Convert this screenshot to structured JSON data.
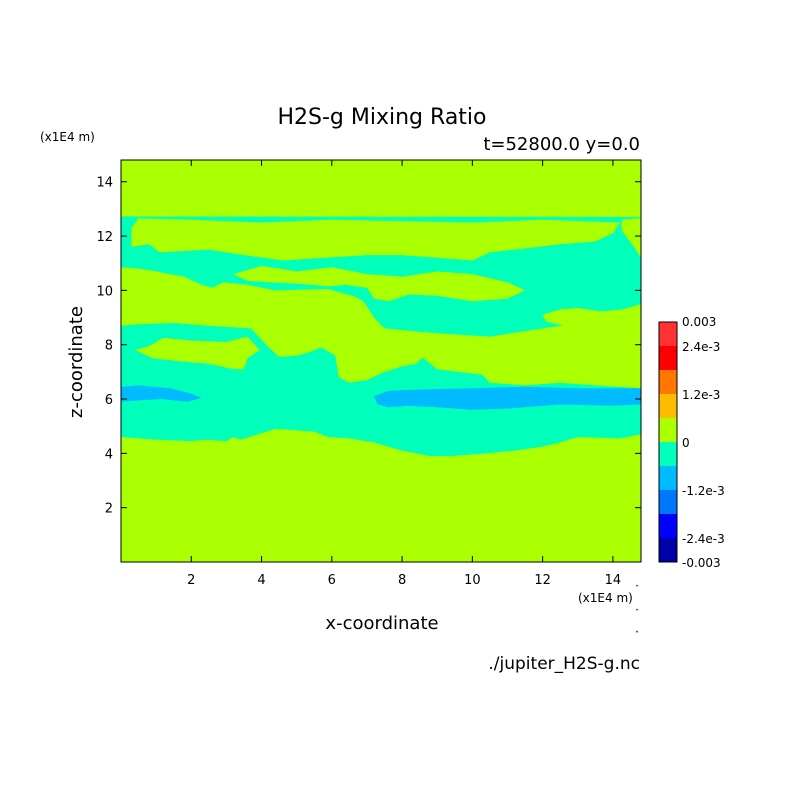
{
  "chart_data": {
    "type": "heatmap",
    "title": "H2S-g Mixing Ratio",
    "subtitle": "t=52800.0 y=0.0",
    "xlabel": "x-coordinate",
    "ylabel": "z-coordinate",
    "x_unit": "(x1E4 m)",
    "y_unit": "(x1E4 m)",
    "source_file": "./jupiter_H2S-g.nc",
    "xlim": [
      0,
      14.8
    ],
    "ylim": [
      0,
      14.8
    ],
    "x_ticks": [
      2,
      4,
      6,
      8,
      10,
      12,
      14
    ],
    "y_ticks": [
      2,
      4,
      6,
      8,
      10,
      12,
      14
    ],
    "colorbar": {
      "range": [
        -0.003,
        0.003
      ],
      "tick_labels": [
        {
          "value": 0.003,
          "label": "0.003"
        },
        {
          "value": 0.0024,
          "label": "2.4e-3"
        },
        {
          "value": 0.0012,
          "label": "1.2e-3"
        },
        {
          "value": 0,
          "label": "0"
        },
        {
          "value": -0.0012,
          "label": "-1.2e-3"
        },
        {
          "value": -0.0024,
          "label": "-2.4e-3"
        },
        {
          "value": -0.003,
          "label": "-0.003"
        }
      ],
      "levels": [
        {
          "min": 0.0024,
          "max": 0.003,
          "color": "#ff3333"
        },
        {
          "min": 0.0018,
          "max": 0.0024,
          "color": "#ff0000"
        },
        {
          "min": 0.0012,
          "max": 0.0018,
          "color": "#ff7700"
        },
        {
          "min": 0.0006,
          "max": 0.0012,
          "color": "#ffbb00"
        },
        {
          "min": 0,
          "max": 0.0006,
          "color": "#aaff00"
        },
        {
          "min": -0.0006,
          "max": 0,
          "color": "#00ffbb"
        },
        {
          "min": -0.0012,
          "max": -0.0006,
          "color": "#00bbff"
        },
        {
          "min": -0.0018,
          "max": -0.0012,
          "color": "#0077ff"
        },
        {
          "min": -0.0024,
          "max": -0.0018,
          "color": "#0000ff"
        },
        {
          "min": -0.003,
          "max": -0.0024,
          "color": "#0000aa"
        }
      ]
    },
    "regions": [
      {
        "name": "background",
        "color": "#aaff00",
        "points": [
          [
            0,
            0
          ],
          [
            14.8,
            0
          ],
          [
            14.8,
            14.8
          ],
          [
            0,
            14.8
          ]
        ]
      },
      {
        "name": "negative-band",
        "color": "#00ffbb",
        "points": [
          [
            0,
            12.78
          ],
          [
            14.8,
            12.78
          ],
          [
            14.8,
            12.66
          ],
          [
            14.25,
            12.6
          ],
          [
            14.25,
            12.2
          ],
          [
            14.6,
            11.6
          ],
          [
            14.8,
            11.2
          ],
          [
            14.8,
            9.5
          ],
          [
            14.3,
            9.3
          ],
          [
            13.4,
            9.2
          ],
          [
            13.5,
            8.8
          ],
          [
            12.5,
            8.7
          ],
          [
            11.5,
            8.5
          ],
          [
            10.5,
            8.3
          ],
          [
            9.2,
            8.4
          ],
          [
            8.3,
            8.5
          ],
          [
            7.5,
            8.6
          ],
          [
            7.2,
            9.0
          ],
          [
            6.9,
            9.6
          ],
          [
            6.6,
            9.8
          ],
          [
            6.3,
            9.9
          ],
          [
            5.9,
            10.05
          ],
          [
            4.4,
            10.0
          ],
          [
            3.6,
            10.2
          ],
          [
            2.9,
            10.3
          ],
          [
            2.6,
            10.1
          ],
          [
            2.3,
            10.2
          ],
          [
            1.8,
            10.5
          ],
          [
            1.0,
            10.7
          ],
          [
            0.5,
            10.8
          ],
          [
            0,
            10.85
          ],
          [
            0,
            8.7
          ],
          [
            0.5,
            8.75
          ],
          [
            1.5,
            8.8
          ],
          [
            2.5,
            8.7
          ],
          [
            3.7,
            8.6
          ],
          [
            4.2,
            7.9
          ],
          [
            4.5,
            7.55
          ],
          [
            5.0,
            7.6
          ],
          [
            5.3,
            7.7
          ],
          [
            5.7,
            7.9
          ],
          [
            6.1,
            7.6
          ],
          [
            6.2,
            6.8
          ],
          [
            6.5,
            6.6
          ],
          [
            7.0,
            6.7
          ],
          [
            7.5,
            7.0
          ],
          [
            8.0,
            7.2
          ],
          [
            8.4,
            7.3
          ],
          [
            8.8,
            7.8
          ],
          [
            9.3,
            8.0
          ],
          [
            9.0,
            7.6
          ],
          [
            9.1,
            7.2
          ],
          [
            9.6,
            7.2
          ],
          [
            10.2,
            7.0
          ],
          [
            10.5,
            6.6
          ],
          [
            11.5,
            6.5
          ],
          [
            12.5,
            6.6
          ],
          [
            13.5,
            6.5
          ],
          [
            14.8,
            6.4
          ],
          [
            14.8,
            4.7
          ],
          [
            14.2,
            4.55
          ],
          [
            13.0,
            4.6
          ],
          [
            12.5,
            4.4
          ],
          [
            12.0,
            4.25
          ],
          [
            11.2,
            4.1
          ],
          [
            10.4,
            4.0
          ],
          [
            9.4,
            3.9
          ],
          [
            8.8,
            3.9
          ],
          [
            8.0,
            4.1
          ],
          [
            7.2,
            4.4
          ],
          [
            6.5,
            4.55
          ],
          [
            5.9,
            4.6
          ],
          [
            5.5,
            4.8
          ],
          [
            4.4,
            4.9
          ],
          [
            3.9,
            4.7
          ],
          [
            3.4,
            4.5
          ],
          [
            3.2,
            4.6
          ],
          [
            3.0,
            4.45
          ],
          [
            2.4,
            4.5
          ],
          [
            2.0,
            4.45
          ],
          [
            1.0,
            4.5
          ],
          [
            0.5,
            4.55
          ],
          [
            0,
            4.6
          ]
        ]
      },
      {
        "name": "positive-patch-upper-left",
        "color": "#aaff00",
        "points": [
          [
            0.3,
            11.6
          ],
          [
            0.8,
            11.7
          ],
          [
            1.1,
            11.4
          ],
          [
            2.5,
            11.5
          ],
          [
            3.5,
            11.3
          ],
          [
            4.6,
            11.1
          ],
          [
            5.8,
            11.2
          ],
          [
            7.0,
            11.3
          ],
          [
            8.0,
            11.3
          ],
          [
            9.0,
            11.2
          ],
          [
            10.0,
            11.1
          ],
          [
            10.5,
            11.4
          ],
          [
            11.2,
            11.5
          ],
          [
            12.5,
            11.7
          ],
          [
            13.5,
            11.8
          ],
          [
            14.0,
            12.1
          ],
          [
            14.2,
            12.5
          ],
          [
            12.0,
            12.6
          ],
          [
            10.0,
            12.5
          ],
          [
            8.0,
            12.55
          ],
          [
            6.0,
            12.6
          ],
          [
            4.0,
            12.5
          ],
          [
            2.0,
            12.6
          ],
          [
            0.5,
            12.65
          ],
          [
            0.3,
            12.3
          ]
        ]
      },
      {
        "name": "positive-patch-middle",
        "color": "#aaff00",
        "points": [
          [
            3.2,
            10.6
          ],
          [
            4.0,
            10.9
          ],
          [
            5.0,
            10.7
          ],
          [
            6.0,
            10.85
          ],
          [
            7.0,
            10.6
          ],
          [
            8.0,
            10.5
          ],
          [
            9.0,
            10.7
          ],
          [
            10.0,
            10.6
          ],
          [
            11.0,
            10.3
          ],
          [
            11.5,
            10.0
          ],
          [
            11.0,
            9.7
          ],
          [
            10.0,
            9.6
          ],
          [
            9.0,
            9.8
          ],
          [
            8.2,
            9.85
          ],
          [
            7.6,
            9.6
          ],
          [
            7.2,
            9.7
          ],
          [
            7.0,
            10.1
          ],
          [
            6.4,
            10.2
          ],
          [
            5.9,
            10.15
          ],
          [
            5.0,
            10.25
          ],
          [
            4.2,
            10.3
          ],
          [
            3.6,
            10.35
          ]
        ]
      },
      {
        "name": "positive-patch-center",
        "color": "#aaff00",
        "points": [
          [
            4.4,
            8.0
          ],
          [
            5.0,
            8.5
          ],
          [
            5.6,
            9.0
          ],
          [
            6.2,
            9.4
          ],
          [
            6.7,
            9.3
          ],
          [
            7.0,
            9.0
          ],
          [
            7.0,
            8.3
          ],
          [
            7.6,
            8.2
          ],
          [
            8.2,
            8.1
          ],
          [
            8.8,
            8.2
          ],
          [
            9.6,
            8.3
          ],
          [
            10.5,
            8.0
          ],
          [
            11.0,
            7.5
          ],
          [
            11.3,
            6.9
          ],
          [
            11.0,
            6.8
          ],
          [
            10.3,
            6.9
          ],
          [
            9.6,
            7.0
          ],
          [
            9.0,
            7.1
          ],
          [
            8.6,
            7.5
          ],
          [
            8.2,
            7.9
          ],
          [
            7.6,
            8.0
          ],
          [
            7.2,
            7.9
          ],
          [
            6.9,
            7.6
          ],
          [
            6.6,
            7.0
          ],
          [
            6.3,
            7.3
          ],
          [
            6.1,
            7.9
          ],
          [
            5.6,
            8.1
          ],
          [
            5.0,
            8.05
          ]
        ]
      },
      {
        "name": "positive-patch-left",
        "color": "#aaff00",
        "points": [
          [
            0.4,
            7.8
          ],
          [
            0.8,
            7.95
          ],
          [
            1.2,
            8.25
          ],
          [
            2.0,
            8.15
          ],
          [
            3.0,
            8.1
          ],
          [
            3.6,
            8.3
          ],
          [
            3.95,
            7.8
          ],
          [
            3.6,
            7.5
          ],
          [
            3.5,
            7.1
          ],
          [
            3.2,
            7.1
          ],
          [
            2.5,
            7.3
          ],
          [
            1.6,
            7.4
          ],
          [
            0.9,
            7.5
          ]
        ]
      },
      {
        "name": "positive-patch-right",
        "color": "#aaff00",
        "points": [
          [
            12.0,
            9.1
          ],
          [
            12.5,
            9.3
          ],
          [
            13.0,
            9.35
          ],
          [
            13.8,
            9.2
          ],
          [
            14.4,
            9.2
          ],
          [
            14.8,
            9.15
          ],
          [
            14.8,
            8.6
          ],
          [
            14.2,
            8.55
          ],
          [
            13.3,
            8.6
          ],
          [
            12.6,
            8.7
          ],
          [
            12.1,
            8.85
          ]
        ]
      },
      {
        "name": "strong-negative-left",
        "color": "#00bbff",
        "points": [
          [
            0,
            6.45
          ],
          [
            0.5,
            6.5
          ],
          [
            1.4,
            6.4
          ],
          [
            2.0,
            6.2
          ],
          [
            2.3,
            6.05
          ],
          [
            1.9,
            5.9
          ],
          [
            1.5,
            5.95
          ],
          [
            1.2,
            6.0
          ],
          [
            0.5,
            5.95
          ],
          [
            0,
            5.9
          ]
        ]
      },
      {
        "name": "strong-negative-right",
        "color": "#00bbff",
        "points": [
          [
            7.3,
            5.8
          ],
          [
            7.2,
            6.1
          ],
          [
            7.6,
            6.3
          ],
          [
            8.5,
            6.35
          ],
          [
            10.0,
            6.4
          ],
          [
            11.5,
            6.45
          ],
          [
            13.0,
            6.4
          ],
          [
            14.8,
            6.4
          ],
          [
            14.8,
            5.8
          ],
          [
            14.0,
            5.75
          ],
          [
            12.5,
            5.8
          ],
          [
            11.0,
            5.65
          ],
          [
            10.0,
            5.6
          ],
          [
            9.0,
            5.7
          ],
          [
            8.2,
            5.75
          ],
          [
            7.6,
            5.7
          ]
        ]
      },
      {
        "name": "positive-strip",
        "color": "#aaff00",
        "points": [
          [
            0,
            12.8
          ],
          [
            14.8,
            12.8
          ],
          [
            14.8,
            12.7
          ],
          [
            0,
            12.72
          ]
        ]
      }
    ],
    "notes_visible_marks": "small caret marks near x-unit label"
  }
}
